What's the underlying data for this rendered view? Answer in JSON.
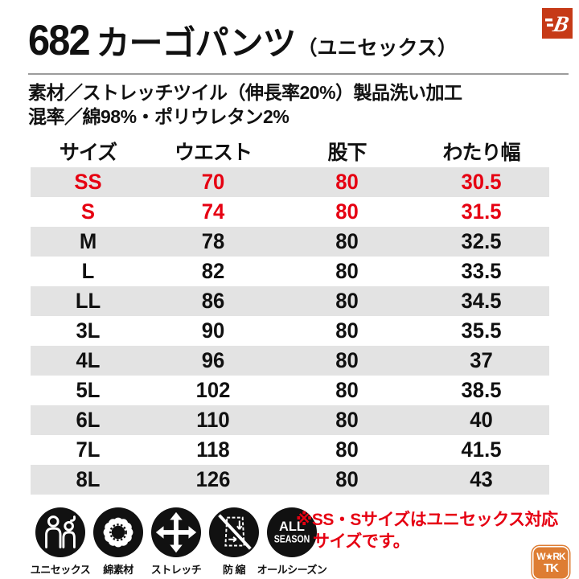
{
  "header": {
    "product_code": "682",
    "product_name": "カーゴパンツ",
    "product_suffix": "（ユニセックス）",
    "brand_logo_letter": "B"
  },
  "specs": {
    "material_line": "素材／ストレッチツイル（伸長率20%）製品洗い加工",
    "blend_line": "混率／綿98%・ポリウレタン2%"
  },
  "size_table": {
    "columns": [
      "サイズ",
      "ウエスト",
      "股下",
      "わたり幅"
    ],
    "rows": [
      {
        "size": "SS",
        "waist": "70",
        "inseam": "80",
        "thigh": "30.5",
        "highlight": true,
        "shaded": true
      },
      {
        "size": "S",
        "waist": "74",
        "inseam": "80",
        "thigh": "31.5",
        "highlight": true,
        "shaded": false
      },
      {
        "size": "M",
        "waist": "78",
        "inseam": "80",
        "thigh": "32.5",
        "highlight": false,
        "shaded": true
      },
      {
        "size": "L",
        "waist": "82",
        "inseam": "80",
        "thigh": "33.5",
        "highlight": false,
        "shaded": false
      },
      {
        "size": "LL",
        "waist": "86",
        "inseam": "80",
        "thigh": "34.5",
        "highlight": false,
        "shaded": true
      },
      {
        "size": "3L",
        "waist": "90",
        "inseam": "80",
        "thigh": "35.5",
        "highlight": false,
        "shaded": false
      },
      {
        "size": "4L",
        "waist": "96",
        "inseam": "80",
        "thigh": "37",
        "highlight": false,
        "shaded": true
      },
      {
        "size": "5L",
        "waist": "102",
        "inseam": "80",
        "thigh": "38.5",
        "highlight": false,
        "shaded": false
      },
      {
        "size": "6L",
        "waist": "110",
        "inseam": "80",
        "thigh": "40",
        "highlight": false,
        "shaded": true
      },
      {
        "size": "7L",
        "waist": "118",
        "inseam": "80",
        "thigh": "41.5",
        "highlight": false,
        "shaded": false
      },
      {
        "size": "8L",
        "waist": "126",
        "inseam": "80",
        "thigh": "43",
        "highlight": false,
        "shaded": true
      }
    ]
  },
  "features": [
    {
      "icon": "unisex-icon",
      "label": "ユニセックス"
    },
    {
      "icon": "cotton-icon",
      "label": "綿素材"
    },
    {
      "icon": "stretch-icon",
      "label": "ストレッチ"
    },
    {
      "icon": "shrink-resistant-icon",
      "label": "防 縮"
    },
    {
      "icon": "all-season-icon",
      "label": "オールシーズン",
      "icon_text_top": "ALL",
      "icon_text_bottom": "SEASON"
    }
  ],
  "note": {
    "line1": "※SS・Sサイズはユニセックス対応",
    "line2": "サイズです。"
  },
  "shop_logo": {
    "line1": "W★RK",
    "line2": "TK"
  },
  "colors": {
    "accent_red": "#e60012",
    "row_gray": "#e3e3e3",
    "brand_red": "#c63a17",
    "shop_orange": "#de7d33",
    "icon_black": "#111111",
    "rule_gray": "#9c9c9c"
  }
}
